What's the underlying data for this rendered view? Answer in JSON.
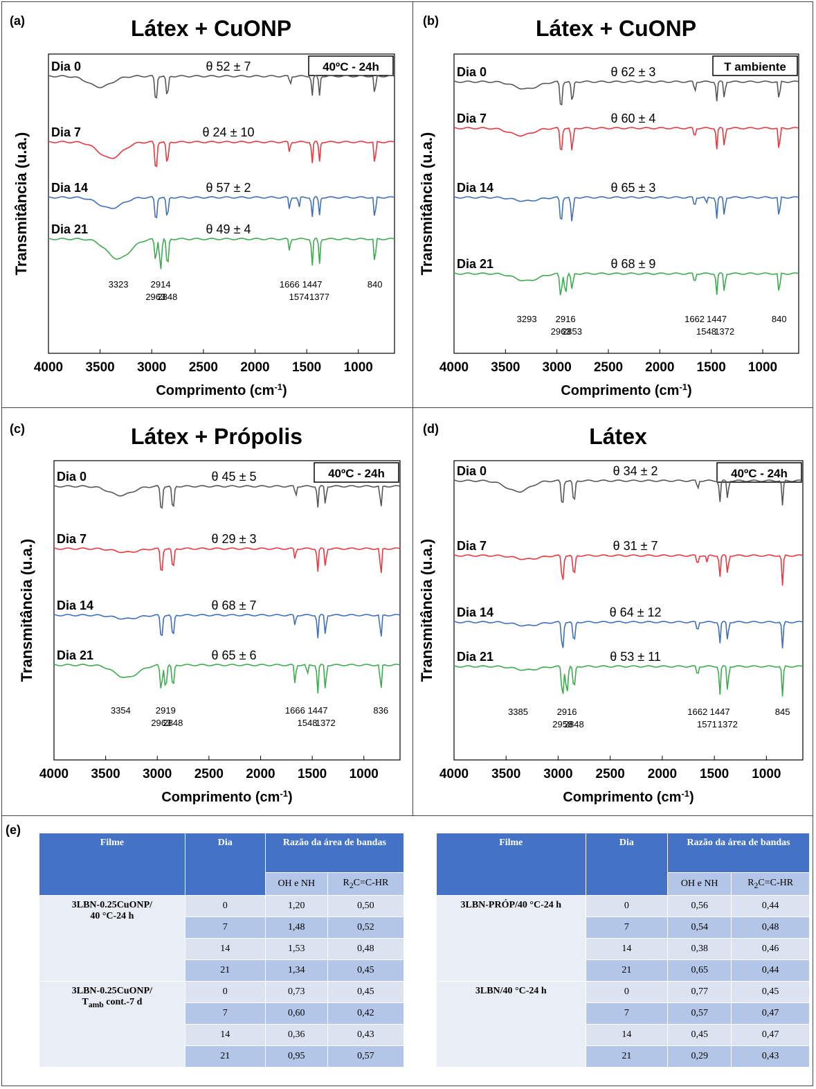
{
  "chart_data": [
    {
      "panel": "(a)",
      "type": "line",
      "title": "Látex + CuONP",
      "condition": "40ºC - 24h",
      "ylabel": "Transmitância (u.a.)",
      "xlabel_base": "Comprimento (cm",
      "xlabel_sup": "-1",
      "xlabel_end": ")",
      "xlim": [
        4000,
        650
      ],
      "x_ticks": [
        "4000",
        "3500",
        "3000",
        "2500",
        "2000",
        "1500",
        "1000"
      ],
      "colors": [
        "#555555",
        "#e8373f",
        "#3e6fb8",
        "#3daa4f"
      ],
      "series": [
        {
          "name": "Dia 0",
          "angle": "θ 52 ± 7",
          "dips": [
            [
              3500,
              0.3
            ],
            [
              2960,
              0.75
            ],
            [
              2850,
              0.6
            ],
            [
              1660,
              0.25
            ],
            [
              1447,
              0.55
            ],
            [
              1377,
              0.55
            ],
            [
              840,
              0.6
            ]
          ]
        },
        {
          "name": "Dia 7",
          "angle": "θ 24 ± 10",
          "dips": [
            [
              3400,
              0.45
            ],
            [
              2960,
              0.85
            ],
            [
              2850,
              0.65
            ],
            [
              1666,
              0.3
            ],
            [
              1447,
              0.6
            ],
            [
              1377,
              0.55
            ],
            [
              840,
              0.75
            ]
          ]
        },
        {
          "name": "Dia 14",
          "angle": "θ 57 ± 2",
          "dips": [
            [
              3400,
              0.3
            ],
            [
              2960,
              0.7
            ],
            [
              2850,
              0.6
            ],
            [
              1666,
              0.35
            ],
            [
              1574,
              0.3
            ],
            [
              1447,
              0.55
            ],
            [
              1377,
              0.5
            ],
            [
              840,
              0.7
            ]
          ]
        },
        {
          "name": "Dia 21",
          "angle": "θ 49 ± 4",
          "dips": [
            [
              3323,
              0.55
            ],
            [
              2963,
              0.6
            ],
            [
              2914,
              0.85
            ],
            [
              2848,
              0.8
            ],
            [
              1666,
              0.35
            ],
            [
              1447,
              0.75
            ],
            [
              1377,
              0.7
            ],
            [
              840,
              0.8
            ]
          ]
        }
      ],
      "annotations": [
        "3323",
        "2963",
        "2914",
        "2848",
        "1666",
        "1574",
        "1447",
        "1377",
        "840"
      ]
    },
    {
      "panel": "(b)",
      "type": "line",
      "title": "Látex + CuONP",
      "condition": "T ambiente",
      "ylabel": "Transmitância (u.a.)",
      "xlabel_base": "Comprimento (cm",
      "xlabel_sup": "-1",
      "xlabel_end": ")",
      "xlim": [
        4000,
        650
      ],
      "x_ticks": [
        "4000",
        "3500",
        "3000",
        "2500",
        "2000",
        "1500",
        "1000"
      ],
      "colors": [
        "#555555",
        "#e8373f",
        "#3e6fb8",
        "#3daa4f"
      ],
      "series": [
        {
          "name": "Dia 0",
          "angle": "θ 62 ± 3",
          "dips": [
            [
              3300,
              0.2
            ],
            [
              2960,
              0.8
            ],
            [
              2850,
              0.6
            ],
            [
              1660,
              0.3
            ],
            [
              1447,
              0.55
            ],
            [
              1372,
              0.5
            ],
            [
              840,
              0.6
            ]
          ]
        },
        {
          "name": "Dia 7",
          "angle": "θ 60 ± 4",
          "dips": [
            [
              3350,
              0.2
            ],
            [
              2960,
              0.75
            ],
            [
              2853,
              0.65
            ],
            [
              1662,
              0.3
            ],
            [
              1447,
              0.6
            ],
            [
              1372,
              0.55
            ],
            [
              840,
              0.75
            ]
          ]
        },
        {
          "name": "Dia 14",
          "angle": "θ 65 ± 3",
          "dips": [
            [
              3300,
              0.1
            ],
            [
              2960,
              0.75
            ],
            [
              2853,
              0.7
            ],
            [
              1662,
              0.3
            ],
            [
              1548,
              0.2
            ],
            [
              1447,
              0.6
            ],
            [
              1372,
              0.55
            ],
            [
              840,
              0.65
            ]
          ]
        },
        {
          "name": "Dia 21",
          "angle": "θ 68 ± 9",
          "dips": [
            [
              3293,
              0.2
            ],
            [
              2963,
              0.65
            ],
            [
              2916,
              0.55
            ],
            [
              2853,
              0.45
            ],
            [
              1662,
              0.3
            ],
            [
              1447,
              0.6
            ],
            [
              1372,
              0.55
            ],
            [
              840,
              0.65
            ]
          ]
        }
      ],
      "annotations": [
        "3293",
        "2963",
        "2916",
        "2853",
        "1662",
        "1548",
        "1447",
        "1372",
        "840"
      ]
    },
    {
      "panel": "(c)",
      "type": "line",
      "title": "Látex + Própolis",
      "condition": "40ºC - 24h",
      "ylabel": "Transmitância (u.a.)",
      "xlabel_base": "Comprimento (cm",
      "xlabel_sup": "-1",
      "xlabel_end": ")",
      "xlim": [
        4000,
        650
      ],
      "x_ticks": [
        "4000",
        "3500",
        "3000",
        "2500",
        "2000",
        "1500",
        "1000"
      ],
      "colors": [
        "#555555",
        "#e8373f",
        "#3e6fb8",
        "#3daa4f"
      ],
      "series": [
        {
          "name": "Dia 0",
          "angle": "θ 45 ± 5",
          "dips": [
            [
              3354,
              0.25
            ],
            [
              2960,
              0.75
            ],
            [
              2848,
              0.7
            ],
            [
              1660,
              0.3
            ],
            [
              1447,
              0.6
            ],
            [
              1372,
              0.55
            ],
            [
              836,
              0.7
            ]
          ]
        },
        {
          "name": "Dia 7",
          "angle": "θ 29 ± 3",
          "dips": [
            [
              3300,
              0.1
            ],
            [
              2960,
              0.75
            ],
            [
              2848,
              0.6
            ],
            [
              1666,
              0.3
            ],
            [
              1447,
              0.65
            ],
            [
              1372,
              0.55
            ],
            [
              836,
              0.85
            ]
          ]
        },
        {
          "name": "Dia 14",
          "angle": "θ 68 ± 7",
          "dips": [
            [
              3300,
              0.1
            ],
            [
              2960,
              0.7
            ],
            [
              2848,
              0.65
            ],
            [
              1666,
              0.3
            ],
            [
              1447,
              0.65
            ],
            [
              1372,
              0.6
            ],
            [
              836,
              0.75
            ]
          ]
        },
        {
          "name": "Dia 21",
          "angle": "θ 65 ± 6",
          "dips": [
            [
              3300,
              0.35
            ],
            [
              2963,
              0.7
            ],
            [
              2919,
              0.65
            ],
            [
              2848,
              0.65
            ],
            [
              1666,
              0.55
            ],
            [
              1548,
              0.3
            ],
            [
              1447,
              0.8
            ],
            [
              1372,
              0.75
            ],
            [
              836,
              0.8
            ]
          ]
        }
      ],
      "annotations": [
        "3354",
        "2963",
        "2919",
        "2848",
        "1666",
        "1548",
        "1447",
        "1372",
        "836"
      ]
    },
    {
      "panel": "(d)",
      "type": "line",
      "title": "Látex",
      "condition": "40ºC - 24h",
      "ylabel": "Transmitância (u.a.)",
      "xlabel_base": "Comprimento (cm",
      "xlabel_sup": "-1",
      "xlabel_end": ")",
      "xlim": [
        4000,
        650
      ],
      "x_ticks": [
        "4000",
        "3500",
        "3000",
        "2500",
        "2000",
        "1500",
        "1000"
      ],
      "colors": [
        "#555555",
        "#e8373f",
        "#3e6fb8",
        "#3daa4f"
      ],
      "series": [
        {
          "name": "Dia 0",
          "angle": "θ 34 ± 2",
          "dips": [
            [
              3385,
              0.3
            ],
            [
              2960,
              0.75
            ],
            [
              2848,
              0.65
            ],
            [
              1660,
              0.25
            ],
            [
              1447,
              0.6
            ],
            [
              1372,
              0.55
            ],
            [
              845,
              0.7
            ]
          ]
        },
        {
          "name": "Dia 7",
          "angle": "θ 31 ± 7",
          "dips": [
            [
              3300,
              0.1
            ],
            [
              2958,
              0.75
            ],
            [
              2848,
              0.6
            ],
            [
              1662,
              0.3
            ],
            [
              1571,
              0.2
            ],
            [
              1447,
              0.6
            ],
            [
              1372,
              0.55
            ],
            [
              845,
              0.85
            ]
          ]
        },
        {
          "name": "Dia 14",
          "angle": "θ 64 ± 12",
          "dips": [
            [
              3300,
              0.1
            ],
            [
              2958,
              0.8
            ],
            [
              2848,
              0.6
            ],
            [
              1662,
              0.3
            ],
            [
              1447,
              0.6
            ],
            [
              1372,
              0.55
            ],
            [
              845,
              0.75
            ]
          ]
        },
        {
          "name": "Dia 21",
          "angle": "θ 53 ± 11",
          "dips": [
            [
              3300,
              0.1
            ],
            [
              2958,
              0.85
            ],
            [
              2916,
              0.75
            ],
            [
              2848,
              0.65
            ],
            [
              1662,
              0.3
            ],
            [
              1447,
              0.8
            ],
            [
              1372,
              0.75
            ],
            [
              845,
              0.85
            ]
          ]
        }
      ],
      "annotations": [
        "3385",
        "2958",
        "2916",
        "2848",
        "1662",
        "1571",
        "1447",
        "1372",
        "845"
      ]
    }
  ],
  "table": {
    "label": "(e)",
    "headers": {
      "filme": "Filme",
      "dia": "Dia",
      "razao": "Razão da área de bandas",
      "oh": "OH e NH",
      "r2c_base": "R",
      "r2c_sub": "2",
      "r2c_end": "C=C-HR"
    },
    "left": [
      {
        "film_line1": "3LBN-0.25CuONP/",
        "film_line2": "40 °C-24 h",
        "film_sub": "",
        "film_line2_end": "",
        "rows": [
          [
            "0",
            "1,20",
            "0,50"
          ],
          [
            "7",
            "1,48",
            "0,52"
          ],
          [
            "14",
            "1,53",
            "0,48"
          ],
          [
            "21",
            "1,34",
            "0,45"
          ]
        ]
      },
      {
        "film_line1": "3LBN-0.25CuONP/",
        "film_line2": "T",
        "film_sub": "amb",
        "film_line2_end": " cont.-7 d",
        "rows": [
          [
            "0",
            "0,73",
            "0,45"
          ],
          [
            "7",
            "0,60",
            "0,42"
          ],
          [
            "14",
            "0,36",
            "0,43"
          ],
          [
            "21",
            "0,95",
            "0,57"
          ]
        ]
      }
    ],
    "right": [
      {
        "film_line1": "3LBN-PRÓP/40 °C-24 h",
        "film_line2": "",
        "film_sub": "",
        "film_line2_end": "",
        "rows": [
          [
            "0",
            "0,56",
            "0,44"
          ],
          [
            "7",
            "0,54",
            "0,48"
          ],
          [
            "14",
            "0,38",
            "0,46"
          ],
          [
            "21",
            "0,65",
            "0,44"
          ]
        ]
      },
      {
        "film_line1": "3LBN/40 °C-24 h",
        "film_line2": "",
        "film_sub": "",
        "film_line2_end": "",
        "rows": [
          [
            "0",
            "0,77",
            "0,45"
          ],
          [
            "7",
            "0,57",
            "0,47"
          ],
          [
            "14",
            "0,45",
            "0,47"
          ],
          [
            "21",
            "0,29",
            "0,43"
          ]
        ]
      }
    ]
  }
}
